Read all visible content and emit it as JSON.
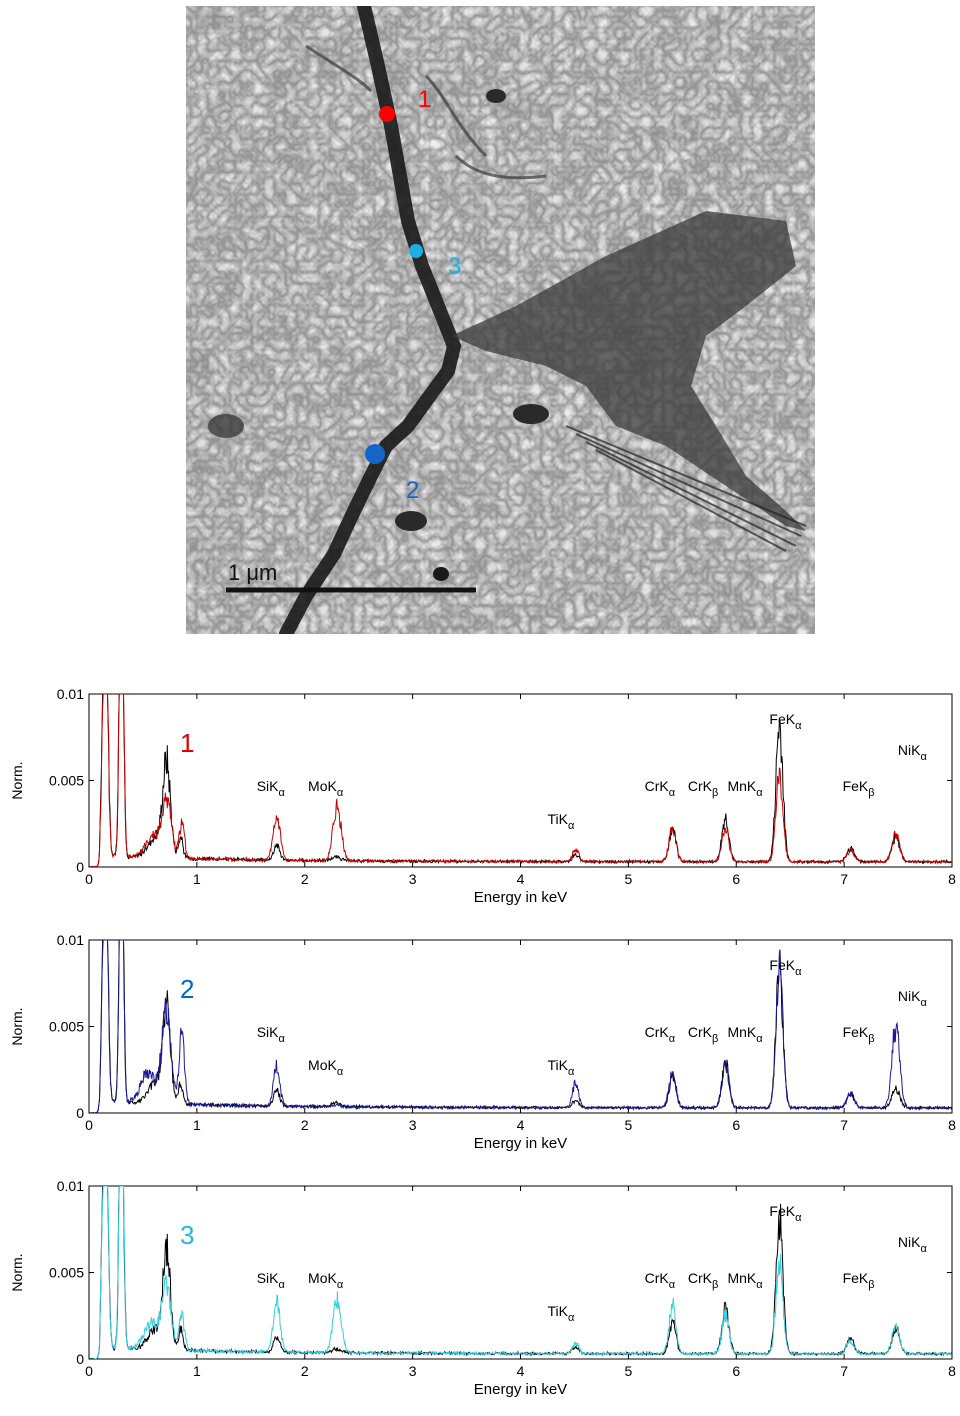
{
  "micrograph": {
    "scale_bar_label": "1 μm",
    "markers": [
      {
        "label": "1",
        "color": "#ff0000"
      },
      {
        "label": "3",
        "color": "#1eaee6"
      },
      {
        "label": "2",
        "color": "#1467c8"
      }
    ]
  },
  "peak_labels": [
    {
      "base": "Si",
      "sub": "α",
      "x": 1.74
    },
    {
      "base": "Mo",
      "sub": "α",
      "x": 2.29
    },
    {
      "base": "Ti",
      "sub": "α",
      "x": 4.51
    },
    {
      "base": "Cr",
      "sub": "α",
      "x": 5.41
    },
    {
      "base": "Cr",
      "sub": "β",
      "x": 5.95
    },
    {
      "base": "Mn",
      "sub": "α",
      "x": 5.9
    },
    {
      "base": "Fe",
      "sub": "α",
      "x": 6.4
    },
    {
      "base": "Fe",
      "sub": "β",
      "x": 7.06
    },
    {
      "base": "Ni",
      "sub": "α",
      "x": 7.48
    }
  ],
  "chart_data": [
    {
      "type": "line",
      "panel_label": "1",
      "panel_color": "#e00000",
      "xlabel": "Energy in keV",
      "ylabel": "Norm.",
      "xlim": [
        0,
        8
      ],
      "ylim": [
        0,
        0.01
      ],
      "xticks": [
        "0",
        "1",
        "2",
        "3",
        "4",
        "5",
        "6",
        "7",
        "8"
      ],
      "yticks": [
        "0",
        "0.005",
        "0.01"
      ],
      "background": 0.0003,
      "series": [
        {
          "color": "#000000",
          "peaks": [
            [
              0.72,
              0.0053,
              0.05
            ],
            [
              0.62,
              0.0012,
              0.1
            ],
            [
              0.85,
              0.0012,
              0.03
            ],
            [
              1.74,
              0.0009,
              0.04
            ],
            [
              2.29,
              0.0002,
              0.06
            ],
            [
              4.51,
              0.0004,
              0.04
            ],
            [
              5.41,
              0.0018,
              0.045
            ],
            [
              5.9,
              0.0026,
              0.045
            ],
            [
              6.4,
              0.008,
              0.045
            ],
            [
              7.06,
              0.0008,
              0.05
            ],
            [
              7.48,
              0.0014,
              0.05
            ]
          ]
        },
        {
          "color": "#c80000",
          "peaks": [
            [
              0.72,
              0.0032,
              0.06
            ],
            [
              0.6,
              0.0012,
              0.1
            ],
            [
              0.86,
              0.002,
              0.035
            ],
            [
              1.74,
              0.0025,
              0.045
            ],
            [
              2.3,
              0.003,
              0.055
            ],
            [
              4.51,
              0.0007,
              0.04
            ],
            [
              5.41,
              0.002,
              0.045
            ],
            [
              5.9,
              0.002,
              0.045
            ],
            [
              6.4,
              0.0052,
              0.045
            ],
            [
              7.06,
              0.0007,
              0.05
            ],
            [
              7.48,
              0.0016,
              0.05
            ]
          ]
        }
      ]
    },
    {
      "type": "line",
      "panel_label": "2",
      "panel_color": "#0066cc",
      "xlabel": "Energy in keV",
      "ylabel": "Norm.",
      "xlim": [
        0,
        8
      ],
      "ylim": [
        0,
        0.01
      ],
      "xticks": [
        "0",
        "1",
        "2",
        "3",
        "4",
        "5",
        "6",
        "7",
        "8"
      ],
      "yticks": [
        "0",
        "0.005",
        "0.01"
      ],
      "background": 0.0003,
      "series": [
        {
          "color": "#000000",
          "peaks": [
            [
              0.72,
              0.0053,
              0.05
            ],
            [
              0.62,
              0.0012,
              0.1
            ],
            [
              0.85,
              0.0012,
              0.03
            ],
            [
              1.74,
              0.0009,
              0.04
            ],
            [
              2.29,
              0.0002,
              0.06
            ],
            [
              4.51,
              0.0004,
              0.04
            ],
            [
              5.41,
              0.0018,
              0.045
            ],
            [
              5.9,
              0.0026,
              0.045
            ],
            [
              6.4,
              0.008,
              0.045
            ],
            [
              7.06,
              0.0008,
              0.05
            ],
            [
              7.48,
              0.0011,
              0.05
            ]
          ]
        },
        {
          "color": "#1a1a99",
          "peaks": [
            [
              0.72,
              0.0055,
              0.06
            ],
            [
              0.55,
              0.0018,
              0.1
            ],
            [
              0.86,
              0.004,
              0.035
            ],
            [
              1.74,
              0.0023,
              0.04
            ],
            [
              2.29,
              0.0001,
              0.06
            ],
            [
              4.51,
              0.0014,
              0.04
            ],
            [
              5.41,
              0.002,
              0.045
            ],
            [
              5.9,
              0.0025,
              0.045
            ],
            [
              6.4,
              0.008,
              0.045
            ],
            [
              7.06,
              0.0008,
              0.05
            ],
            [
              7.48,
              0.0047,
              0.05
            ]
          ]
        }
      ]
    },
    {
      "type": "line",
      "panel_label": "3",
      "panel_color": "#22b8d8",
      "xlabel": "Energy in keV",
      "ylabel": "Norm.",
      "xlim": [
        0,
        8
      ],
      "ylim": [
        0,
        0.01
      ],
      "xticks": [
        "0",
        "1",
        "2",
        "3",
        "4",
        "5",
        "6",
        "7",
        "8"
      ],
      "yticks": [
        "0",
        "0.005",
        "0.01"
      ],
      "background": 0.0003,
      "series": [
        {
          "color": "#000000",
          "peaks": [
            [
              0.72,
              0.0053,
              0.05
            ],
            [
              0.62,
              0.0012,
              0.1
            ],
            [
              0.85,
              0.0012,
              0.03
            ],
            [
              1.74,
              0.0009,
              0.04
            ],
            [
              2.29,
              0.0002,
              0.06
            ],
            [
              4.51,
              0.0004,
              0.04
            ],
            [
              5.41,
              0.0018,
              0.045
            ],
            [
              5.9,
              0.0026,
              0.045
            ],
            [
              6.4,
              0.008,
              0.045
            ],
            [
              7.06,
              0.0008,
              0.05
            ],
            [
              7.48,
              0.0014,
              0.05
            ]
          ]
        },
        {
          "color": "#33d0e0",
          "peaks": [
            [
              0.72,
              0.0035,
              0.06
            ],
            [
              0.58,
              0.0015,
              0.1
            ],
            [
              0.86,
              0.002,
              0.035
            ],
            [
              1.74,
              0.0029,
              0.045
            ],
            [
              2.3,
              0.003,
              0.055
            ],
            [
              4.51,
              0.0006,
              0.04
            ],
            [
              5.41,
              0.0028,
              0.045
            ],
            [
              5.9,
              0.0023,
              0.045
            ],
            [
              6.4,
              0.0055,
              0.045
            ],
            [
              7.06,
              0.0007,
              0.05
            ],
            [
              7.48,
              0.0016,
              0.05
            ]
          ]
        }
      ]
    }
  ]
}
